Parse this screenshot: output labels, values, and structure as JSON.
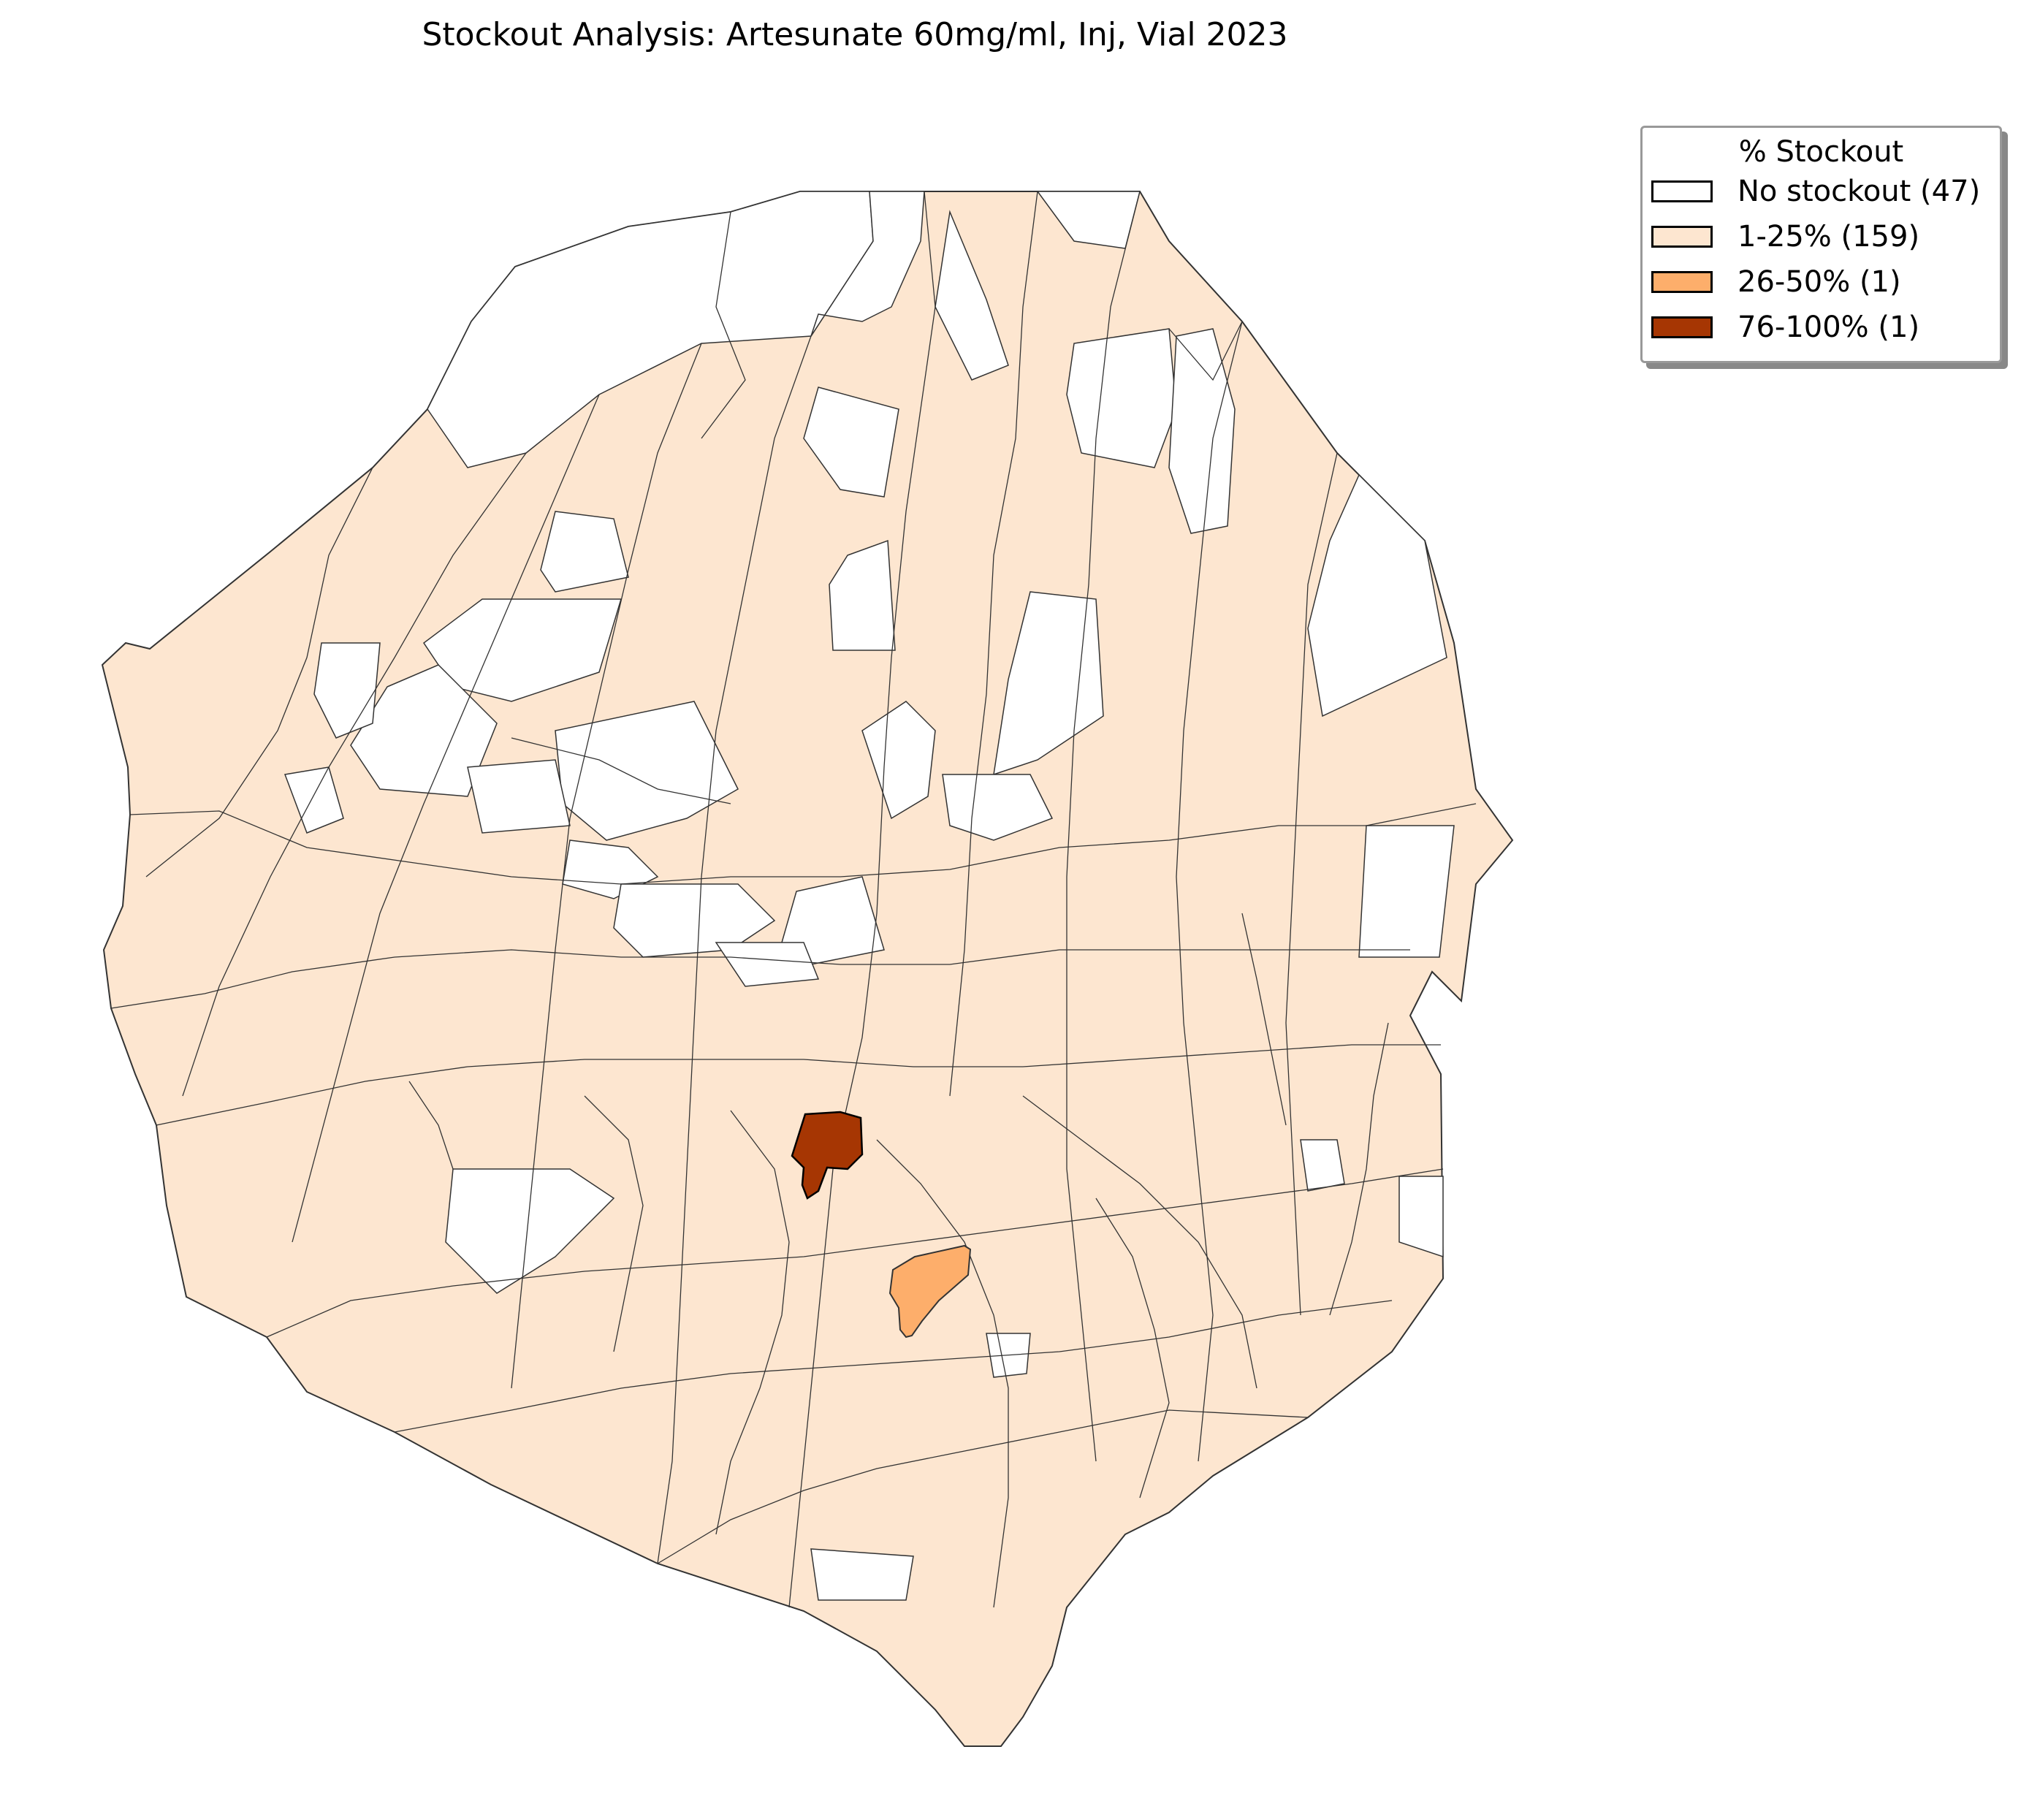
{
  "title": "Stockout Analysis: Artesunate 60mg/ml, Inj, Vial 2023",
  "legend": {
    "title": "% Stockout",
    "items": [
      {
        "label": "No stockout (47)",
        "color": "#ffffff"
      },
      {
        "label": "1-25% (159)",
        "color": "#fde6d0"
      },
      {
        "label": "26-50% (1)",
        "color": "#fdae6b"
      },
      {
        "label": "76-100% (1)",
        "color": "#a63603"
      }
    ]
  },
  "colors": {
    "no_stockout": "#ffffff",
    "low": "#fde6d0",
    "mid": "#fdae6b",
    "high": "#a63603",
    "border": "#333333"
  }
}
